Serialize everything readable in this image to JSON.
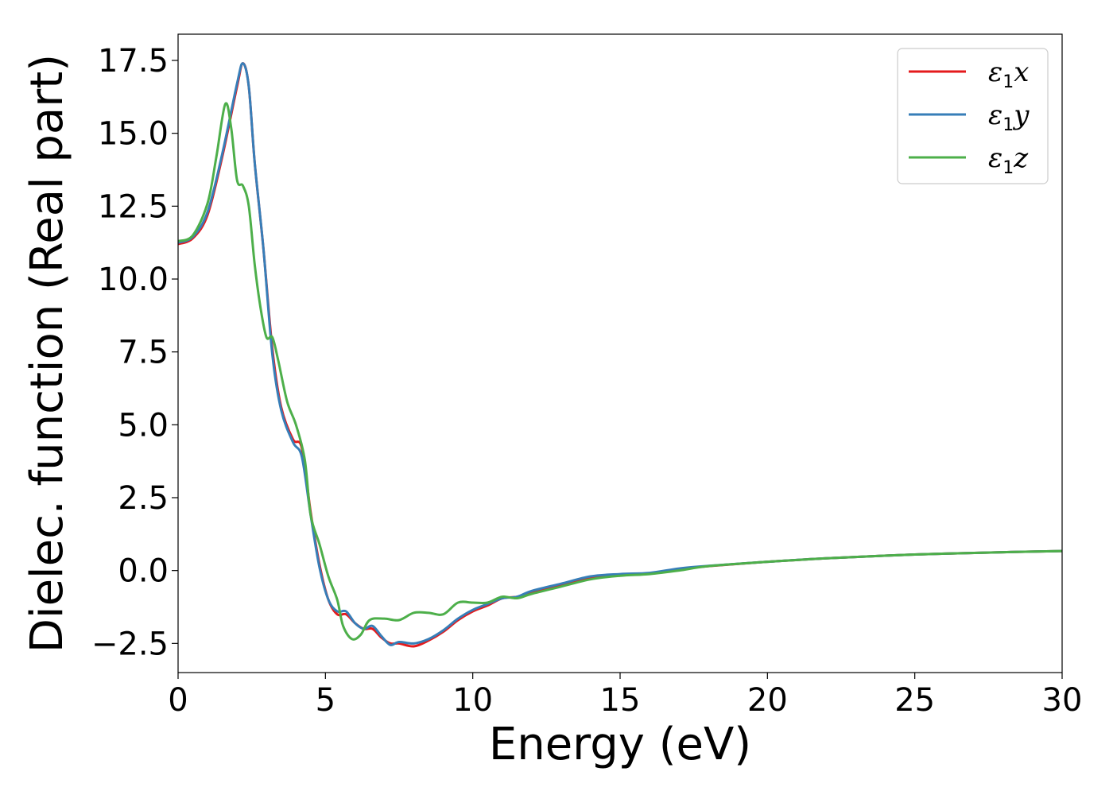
{
  "chart_data": {
    "type": "line",
    "xlabel": "Energy (eV)",
    "ylabel": "Dielec. function (Real part)",
    "xlim": [
      0,
      30
    ],
    "ylim": [
      -3.5,
      18.4
    ],
    "xticks": [
      0,
      5,
      10,
      15,
      20,
      25,
      30
    ],
    "xtick_labels": [
      "0",
      "5",
      "10",
      "15",
      "20",
      "25",
      "30"
    ],
    "yticks": [
      -2.5,
      0,
      2.5,
      5,
      7.5,
      10,
      12.5,
      15,
      17.5
    ],
    "ytick_labels": [
      "−2.5",
      "0.0",
      "2.5",
      "5.0",
      "7.5",
      "10.0",
      "12.5",
      "15.0",
      "17.5"
    ],
    "grid": false,
    "legend_position": "top-right",
    "series": [
      {
        "name": "ε1x",
        "name_base": "ε",
        "name_sub": "1",
        "name_suffix": "x",
        "color": "#e41a1c",
        "points": [
          [
            0,
            11.2
          ],
          [
            0.5,
            11.4
          ],
          [
            1.0,
            12.2
          ],
          [
            1.5,
            14.2
          ],
          [
            2.0,
            16.6
          ],
          [
            2.2,
            17.4
          ],
          [
            2.4,
            16.6
          ],
          [
            2.6,
            14.0
          ],
          [
            2.9,
            11.0
          ],
          [
            3.2,
            7.6
          ],
          [
            3.5,
            5.6
          ],
          [
            3.9,
            4.5
          ],
          [
            4.2,
            4.2
          ],
          [
            4.5,
            2.0
          ],
          [
            4.8,
            0.2
          ],
          [
            5.1,
            -1.0
          ],
          [
            5.4,
            -1.5
          ],
          [
            5.7,
            -1.5
          ],
          [
            6.0,
            -1.8
          ],
          [
            6.3,
            -2.0
          ],
          [
            6.6,
            -2.0
          ],
          [
            6.9,
            -2.3
          ],
          [
            7.2,
            -2.5
          ],
          [
            7.5,
            -2.5
          ],
          [
            8.0,
            -2.6
          ],
          [
            8.5,
            -2.4
          ],
          [
            9.0,
            -2.1
          ],
          [
            9.5,
            -1.7
          ],
          [
            10.0,
            -1.4
          ],
          [
            10.5,
            -1.2
          ],
          [
            11.0,
            -0.95
          ],
          [
            11.5,
            -0.9
          ],
          [
            12.0,
            -0.75
          ],
          [
            13.0,
            -0.5
          ],
          [
            14.0,
            -0.25
          ],
          [
            15.0,
            -0.15
          ],
          [
            16.0,
            -0.1
          ],
          [
            17.0,
            0.05
          ],
          [
            18.0,
            0.15
          ],
          [
            20.0,
            0.3
          ],
          [
            22.0,
            0.42
          ],
          [
            25.0,
            0.55
          ],
          [
            28.0,
            0.63
          ],
          [
            30.0,
            0.67
          ]
        ]
      },
      {
        "name": "ε1y",
        "name_base": "ε",
        "name_sub": "1",
        "name_suffix": "y",
        "color": "#377eb8",
        "points": [
          [
            0,
            11.25
          ],
          [
            0.5,
            11.45
          ],
          [
            1.0,
            12.3
          ],
          [
            1.5,
            14.3
          ],
          [
            2.0,
            16.7
          ],
          [
            2.2,
            17.4
          ],
          [
            2.4,
            16.6
          ],
          [
            2.6,
            14.0
          ],
          [
            2.9,
            11.0
          ],
          [
            3.2,
            7.4
          ],
          [
            3.5,
            5.5
          ],
          [
            3.9,
            4.4
          ],
          [
            4.2,
            3.9
          ],
          [
            4.5,
            1.9
          ],
          [
            4.8,
            0.1
          ],
          [
            5.1,
            -1.0
          ],
          [
            5.4,
            -1.4
          ],
          [
            5.7,
            -1.4
          ],
          [
            6.0,
            -1.8
          ],
          [
            6.3,
            -2.0
          ],
          [
            6.6,
            -1.9
          ],
          [
            6.9,
            -2.25
          ],
          [
            7.2,
            -2.55
          ],
          [
            7.5,
            -2.45
          ],
          [
            8.0,
            -2.5
          ],
          [
            8.5,
            -2.35
          ],
          [
            9.0,
            -2.05
          ],
          [
            9.5,
            -1.65
          ],
          [
            10.0,
            -1.35
          ],
          [
            10.5,
            -1.15
          ],
          [
            11.0,
            -0.95
          ],
          [
            11.5,
            -0.9
          ],
          [
            12.0,
            -0.7
          ],
          [
            13.0,
            -0.45
          ],
          [
            14.0,
            -0.2
          ],
          [
            15.0,
            -0.12
          ],
          [
            16.0,
            -0.08
          ],
          [
            17.0,
            0.07
          ],
          [
            18.0,
            0.16
          ],
          [
            20.0,
            0.3
          ],
          [
            22.0,
            0.42
          ],
          [
            25.0,
            0.55
          ],
          [
            28.0,
            0.63
          ],
          [
            30.0,
            0.67
          ]
        ]
      },
      {
        "name": "ε1z",
        "name_base": "ε",
        "name_sub": "1",
        "name_suffix": "z",
        "color": "#4daf4a",
        "points": [
          [
            0,
            11.3
          ],
          [
            0.5,
            11.5
          ],
          [
            1.0,
            12.6
          ],
          [
            1.3,
            14.2
          ],
          [
            1.6,
            16.0
          ],
          [
            1.8,
            15.2
          ],
          [
            2.0,
            13.4
          ],
          [
            2.2,
            13.2
          ],
          [
            2.4,
            12.5
          ],
          [
            2.6,
            10.5
          ],
          [
            2.8,
            9.0
          ],
          [
            3.0,
            8.0
          ],
          [
            3.2,
            8.0
          ],
          [
            3.4,
            7.2
          ],
          [
            3.7,
            5.8
          ],
          [
            4.0,
            5.0
          ],
          [
            4.3,
            3.8
          ],
          [
            4.5,
            1.9
          ],
          [
            4.8,
            0.9
          ],
          [
            5.1,
            -0.2
          ],
          [
            5.4,
            -1.0
          ],
          [
            5.6,
            -1.9
          ],
          [
            5.9,
            -2.35
          ],
          [
            6.2,
            -2.2
          ],
          [
            6.5,
            -1.7
          ],
          [
            7.0,
            -1.65
          ],
          [
            7.5,
            -1.7
          ],
          [
            8.0,
            -1.45
          ],
          [
            8.5,
            -1.45
          ],
          [
            9.0,
            -1.5
          ],
          [
            9.5,
            -1.1
          ],
          [
            10.0,
            -1.1
          ],
          [
            10.5,
            -1.1
          ],
          [
            11.0,
            -0.9
          ],
          [
            11.5,
            -0.95
          ],
          [
            12.0,
            -0.8
          ],
          [
            13.0,
            -0.55
          ],
          [
            14.0,
            -0.3
          ],
          [
            15.0,
            -0.18
          ],
          [
            16.0,
            -0.12
          ],
          [
            17.0,
            0.0
          ],
          [
            18.0,
            0.15
          ],
          [
            20.0,
            0.3
          ],
          [
            22.0,
            0.42
          ],
          [
            25.0,
            0.55
          ],
          [
            28.0,
            0.63
          ],
          [
            30.0,
            0.67
          ]
        ]
      }
    ]
  }
}
